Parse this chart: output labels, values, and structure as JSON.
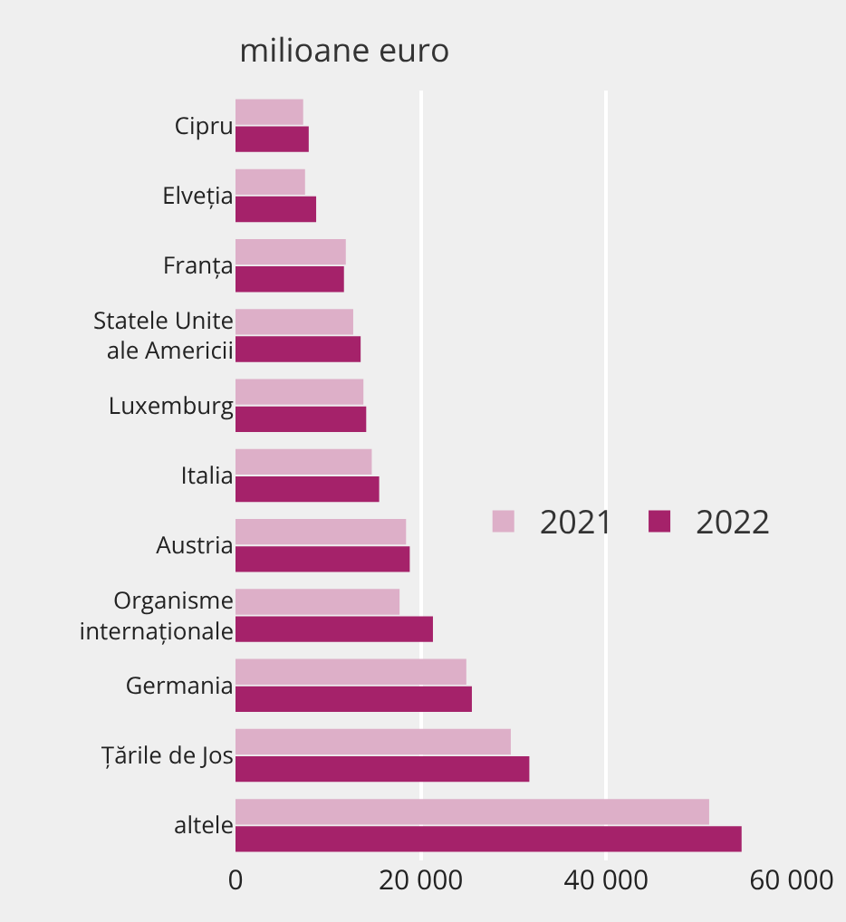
{
  "chart_data": {
    "type": "bar",
    "orientation": "horizontal",
    "subtitle": "milioane euro",
    "categories": [
      "Cipru",
      "Elveția",
      "Franța",
      "Statele Unite\nale Americii",
      "Luxemburg",
      "Italia",
      "Austria",
      "Organisme\ninternaționale",
      "Germania",
      "Țările de Jos",
      "altele"
    ],
    "series": [
      {
        "name": "2021",
        "color": "#ddafc8",
        "values": [
          7300,
          7500,
          11900,
          12700,
          13800,
          14700,
          18400,
          17700,
          24900,
          29700,
          51100
        ]
      },
      {
        "name": "2022",
        "color": "#a5226a",
        "values": [
          7900,
          8700,
          11700,
          13500,
          14100,
          15500,
          18800,
          21300,
          25500,
          31700,
          54600
        ]
      }
    ],
    "xlim": [
      0,
      60000
    ],
    "xticks": [
      {
        "value": 0,
        "label": "0"
      },
      {
        "value": 20000,
        "label": "20 000"
      },
      {
        "value": 40000,
        "label": "40 000"
      },
      {
        "value": 60000,
        "label": "60 000"
      }
    ],
    "grid": "x",
    "legend": "right"
  }
}
